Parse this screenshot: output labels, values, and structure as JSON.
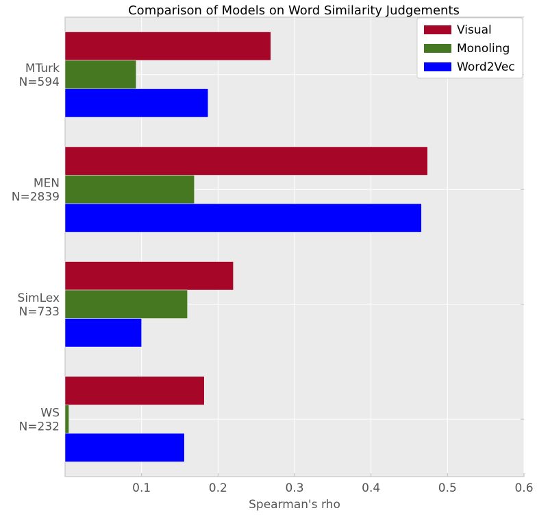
{
  "chart_data": {
    "type": "bar",
    "orientation": "horizontal",
    "title": "Comparison of Models on Word Similarity Judgements",
    "xlabel": "Spearman's rho",
    "ylabel": "",
    "xlim": [
      0,
      0.6
    ],
    "xticks": [
      "0.1",
      "0.2",
      "0.3",
      "0.4",
      "0.5",
      "0.6"
    ],
    "xtick_values": [
      0.1,
      0.2,
      0.3,
      0.4,
      0.5,
      0.6
    ],
    "grid": true,
    "legend_position": "top-right",
    "categories": [
      {
        "line1": "MTurk",
        "line2": "N=594"
      },
      {
        "line1": "MEN",
        "line2": "N=2839"
      },
      {
        "line1": "SimLex",
        "line2": "N=733"
      },
      {
        "line1": "WS",
        "line2": "N=232"
      }
    ],
    "series": [
      {
        "name": "Visual",
        "color": "#A60628",
        "values": [
          0.269,
          0.474,
          0.22,
          0.182
        ]
      },
      {
        "name": "Monoling",
        "color": "#467821",
        "values": [
          0.093,
          0.169,
          0.16,
          0.005
        ]
      },
      {
        "name": "Word2Vec",
        "color": "#0000FF",
        "values": [
          0.187,
          0.466,
          0.1,
          0.156
        ]
      }
    ]
  }
}
